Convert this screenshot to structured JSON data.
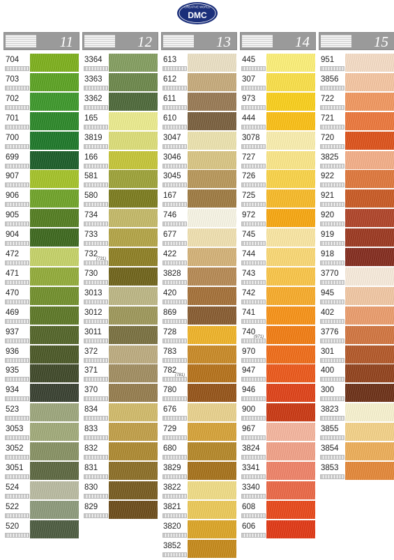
{
  "logo": {
    "brand": "DMC",
    "tagline": "CREATIVE WORLD"
  },
  "columns": [
    {
      "number": "11",
      "entries": [
        {
          "code": "704",
          "color": "#7fb21e"
        },
        {
          "code": "703",
          "color": "#5ea524"
        },
        {
          "code": "702",
          "color": "#3f9a2c"
        },
        {
          "code": "701",
          "color": "#2e8a2a"
        },
        {
          "code": "700",
          "color": "#1f7a2a"
        },
        {
          "code": "699",
          "color": "#1d5f2a"
        },
        {
          "code": "907",
          "color": "#a7c52a"
        },
        {
          "code": "906",
          "color": "#72a62a"
        },
        {
          "code": "905",
          "color": "#557f22"
        },
        {
          "code": "904",
          "color": "#3f6a1f"
        },
        {
          "code": "472",
          "color": "#c8d56a"
        },
        {
          "code": "471",
          "color": "#95ae3b"
        },
        {
          "code": "470",
          "color": "#74922e"
        },
        {
          "code": "469",
          "color": "#5f7a28"
        },
        {
          "code": "937",
          "color": "#55672a"
        },
        {
          "code": "936",
          "color": "#4d5a28"
        },
        {
          "code": "935",
          "color": "#414a2a"
        },
        {
          "code": "934",
          "color": "#3a4232"
        },
        {
          "code": "523",
          "color": "#9fa97e"
        },
        {
          "code": "3053",
          "color": "#a4ad7c"
        },
        {
          "code": "3052",
          "color": "#8a9466"
        },
        {
          "code": "3051",
          "color": "#5f6a43"
        },
        {
          "code": "524",
          "color": "#bcbda3"
        },
        {
          "code": "522",
          "color": "#8f9c7d"
        },
        {
          "code": "520",
          "color": "#4f5e42"
        }
      ]
    },
    {
      "number": "12",
      "entries": [
        {
          "code": "3364",
          "color": "#86a062"
        },
        {
          "code": "3363",
          "color": "#6f8a4d"
        },
        {
          "code": "3362",
          "color": "#506b3c"
        },
        {
          "code": "165",
          "color": "#eeee90"
        },
        {
          "code": "3819",
          "color": "#dfe07a"
        },
        {
          "code": "166",
          "color": "#c8c83a"
        },
        {
          "code": "581",
          "color": "#a0a53a"
        },
        {
          "code": "580",
          "color": "#7e7e20"
        },
        {
          "code": "734",
          "color": "#c7bc6a"
        },
        {
          "code": "733",
          "color": "#b6a748"
        },
        {
          "code": "732",
          "note": "(731)",
          "color": "#918226"
        },
        {
          "code": "730",
          "color": "#72661c"
        },
        {
          "code": "3013",
          "color": "#bfb987"
        },
        {
          "code": "3012",
          "color": "#a09a5c"
        },
        {
          "code": "3011",
          "color": "#7c7342"
        },
        {
          "code": "372",
          "color": "#bfae82"
        },
        {
          "code": "371",
          "color": "#a49063"
        },
        {
          "code": "370",
          "color": "#987f50"
        },
        {
          "code": "834",
          "color": "#d4bd6c"
        },
        {
          "code": "833",
          "color": "#c4a24a"
        },
        {
          "code": "832",
          "color": "#b08c33"
        },
        {
          "code": "831",
          "color": "#8e7128"
        },
        {
          "code": "830",
          "color": "#7a5e22"
        },
        {
          "code": "829",
          "color": "#6f4e1c"
        }
      ]
    },
    {
      "number": "13",
      "entries": [
        {
          "code": "613",
          "color": "#eee3c7"
        },
        {
          "code": "612",
          "color": "#c9ad7d"
        },
        {
          "code": "611",
          "color": "#9b7c56"
        },
        {
          "code": "610",
          "color": "#7c6240"
        },
        {
          "code": "3047",
          "color": "#efe5b1"
        },
        {
          "code": "3046",
          "color": "#dcc886"
        },
        {
          "code": "3045",
          "color": "#bb9a5c"
        },
        {
          "code": "167",
          "color": "#a17d44"
        },
        {
          "code": "746",
          "color": "#fbf8e8"
        },
        {
          "code": "677",
          "color": "#f3e3b2"
        },
        {
          "code": "422",
          "color": "#d7b57a"
        },
        {
          "code": "3828",
          "color": "#b98c56"
        },
        {
          "code": "420",
          "color": "#a7733a"
        },
        {
          "code": "869",
          "color": "#8a5e32"
        },
        {
          "code": "728",
          "color": "#f2b62a"
        },
        {
          "code": "783",
          "color": "#cc8c28"
        },
        {
          "code": "782",
          "note": "(781)",
          "color": "#b8741c"
        },
        {
          "code": "780",
          "color": "#98561a"
        },
        {
          "code": "676",
          "color": "#ecd48f"
        },
        {
          "code": "729",
          "color": "#d9a53a"
        },
        {
          "code": "680",
          "color": "#b88a2a"
        },
        {
          "code": "3829",
          "color": "#a9741c"
        },
        {
          "code": "3822",
          "color": "#f3df88"
        },
        {
          "code": "3821",
          "color": "#efcc5a"
        },
        {
          "code": "3820",
          "color": "#dfa828"
        },
        {
          "code": "3852",
          "color": "#c98c1c"
        }
      ]
    },
    {
      "number": "14",
      "entries": [
        {
          "code": "445",
          "color": "#fff27a"
        },
        {
          "code": "307",
          "color": "#fde24a"
        },
        {
          "code": "973",
          "color": "#fdd21d"
        },
        {
          "code": "444",
          "color": "#fec216"
        },
        {
          "code": "3078",
          "color": "#fdf1b0"
        },
        {
          "code": "727",
          "color": "#fee98a"
        },
        {
          "code": "726",
          "color": "#fdd64a"
        },
        {
          "code": "725",
          "color": "#fbbd2a"
        },
        {
          "code": "972",
          "color": "#fbaa12"
        },
        {
          "code": "745",
          "color": "#fde9a5"
        },
        {
          "code": "744",
          "color": "#fddb76"
        },
        {
          "code": "743",
          "color": "#fdc84a"
        },
        {
          "code": "742",
          "color": "#fbae2c"
        },
        {
          "code": "741",
          "color": "#fb9518"
        },
        {
          "code": "740",
          "note": "(971)",
          "color": "#f57f14"
        },
        {
          "code": "970",
          "color": "#f36f1a"
        },
        {
          "code": "947",
          "color": "#ef5a1c"
        },
        {
          "code": "946",
          "color": "#e2441a"
        },
        {
          "code": "900",
          "color": "#cd3a14"
        },
        {
          "code": "967",
          "color": "#f8b8a0"
        },
        {
          "code": "3824",
          "color": "#f4a48a"
        },
        {
          "code": "3341",
          "color": "#f2856a"
        },
        {
          "code": "3340",
          "color": "#ee6a48"
        },
        {
          "code": "608",
          "color": "#ec4a1c"
        },
        {
          "code": "606",
          "color": "#e43a16"
        }
      ]
    },
    {
      "number": "15",
      "entries": [
        {
          "code": "951",
          "color": "#f8dfc8"
        },
        {
          "code": "3856",
          "color": "#f8c8a4"
        },
        {
          "code": "722",
          "color": "#f49a62"
        },
        {
          "code": "721",
          "color": "#ef7a3e"
        },
        {
          "code": "720",
          "color": "#e0541c"
        },
        {
          "code": "3825",
          "color": "#f7b18a"
        },
        {
          "code": "922",
          "color": "#e27a3e"
        },
        {
          "code": "921",
          "color": "#cc5c26"
        },
        {
          "code": "920",
          "color": "#b2462a"
        },
        {
          "code": "919",
          "color": "#9e3a22"
        },
        {
          "code": "918",
          "color": "#862e20"
        },
        {
          "code": "3770",
          "color": "#fbeede"
        },
        {
          "code": "945",
          "color": "#f4caa6"
        },
        {
          "code": "402",
          "color": "#ee9f6e"
        },
        {
          "code": "3776",
          "color": "#d57842"
        },
        {
          "code": "301",
          "color": "#b65a2a"
        },
        {
          "code": "400",
          "color": "#94441e"
        },
        {
          "code": "300",
          "color": "#6e3218"
        },
        {
          "code": "3823",
          "color": "#fbf5d2"
        },
        {
          "code": "3855",
          "color": "#f7d48a"
        },
        {
          "code": "3854",
          "color": "#f0b05a"
        },
        {
          "code": "3853",
          "color": "#e78a3a"
        }
      ]
    }
  ]
}
